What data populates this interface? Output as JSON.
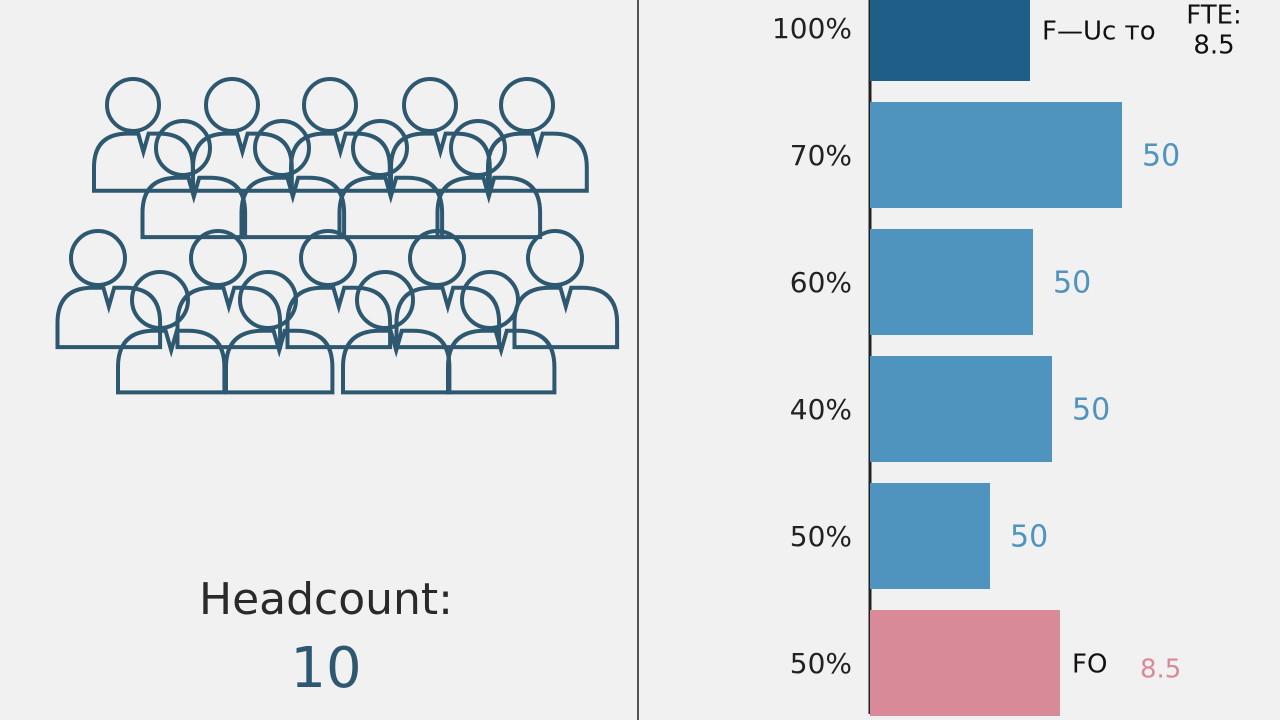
{
  "headcount": {
    "label": "Headcount:",
    "value": "10"
  },
  "chart_data": {
    "type": "hbar",
    "categories": [
      "100%",
      "70%",
      "60%",
      "40%",
      "50%",
      "50%"
    ],
    "values": [
      160,
      252,
      163,
      182,
      120,
      190
    ],
    "colors": [
      "#1f5f87",
      "#4f94bf",
      "#4f94bf",
      "#4f94bf",
      "#4f94bf",
      "#d98a98"
    ],
    "bar_labels": [
      "F—Uc то",
      "50",
      "50",
      "50",
      "50",
      "FO"
    ],
    "top_note": [
      "FTE:",
      "8.5"
    ],
    "bottom_note": "8.5"
  }
}
